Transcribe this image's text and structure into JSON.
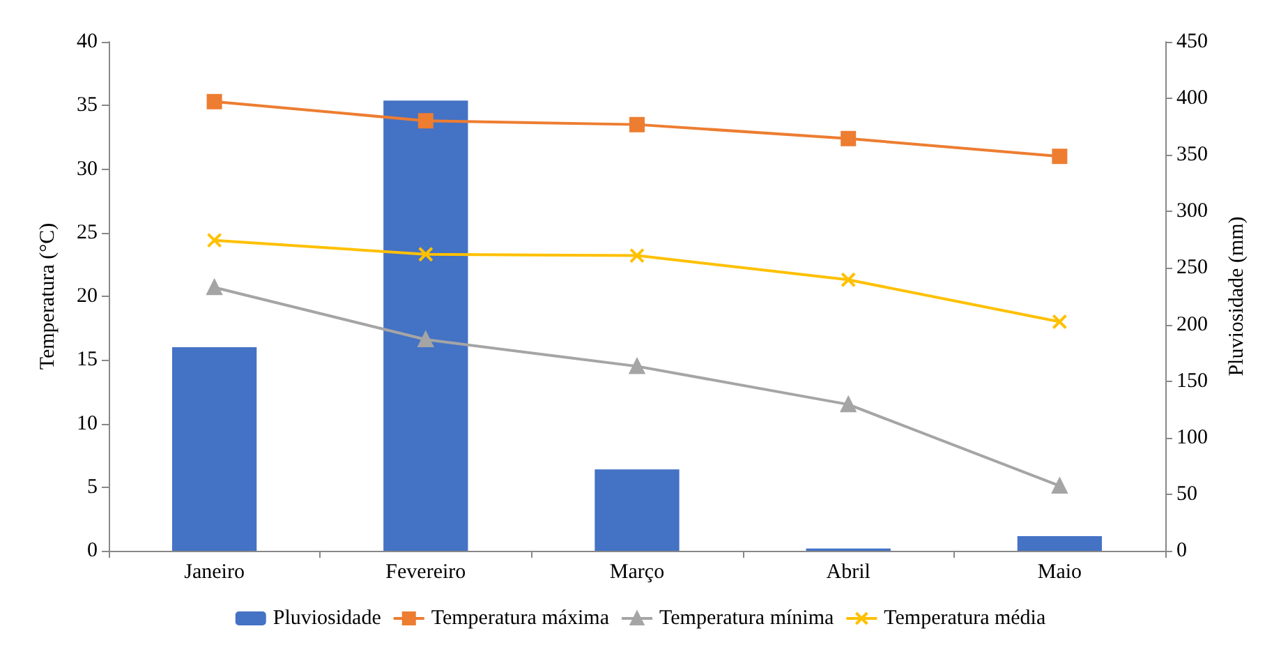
{
  "chart_data": {
    "type": "line",
    "categories": [
      "Janeiro",
      "Fevereiro",
      "Março",
      "Abril",
      "Maio"
    ],
    "ylabel": "Temperatura (°C)",
    "y2label": "Pluviosidade (mm)",
    "ylim": [
      0,
      40
    ],
    "yticks": [
      0,
      5,
      10,
      15,
      20,
      25,
      30,
      35,
      40
    ],
    "y2lim": [
      0,
      450
    ],
    "y2ticks": [
      0,
      50,
      100,
      150,
      200,
      250,
      300,
      350,
      400,
      450
    ],
    "legend": "bottom",
    "grid": false,
    "series": [
      {
        "name": "Pluviosidade",
        "type": "bar",
        "axis": "y2",
        "color": "#4472c4",
        "values": [
          180,
          398,
          72,
          2,
          13
        ]
      },
      {
        "name": "Temperatura máxima",
        "color": "#ed7d31",
        "marker": "square",
        "values": [
          35.3,
          33.8,
          33.5,
          32.4,
          31.0
        ]
      },
      {
        "name": "Temperatura mínima",
        "color": "#a5a5a5",
        "marker": "triangle",
        "values": [
          20.7,
          16.6,
          14.5,
          11.5,
          5.1
        ]
      },
      {
        "name": "Temperatura média",
        "color": "#ffc000",
        "marker": "cross",
        "values": [
          24.4,
          23.3,
          23.2,
          21.3,
          18.0
        ]
      }
    ]
  }
}
